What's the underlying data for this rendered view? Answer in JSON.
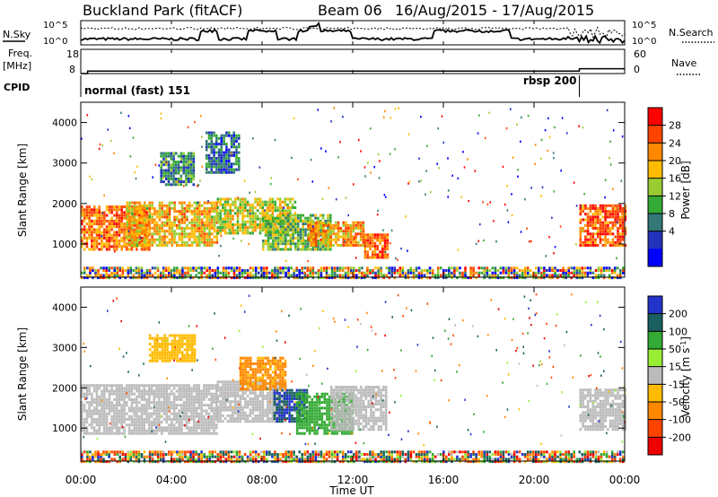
{
  "header": {
    "station": "Buckland Park (fitACF)",
    "beam": "Beam 06",
    "date_range": "16/Aug/2015 - 17/Aug/2015"
  },
  "noise_panel": {
    "left_label": "N.Sky",
    "right_label": "N.Search",
    "left_ticks": [
      "10^5",
      "10^0"
    ],
    "right_ticks": [
      "10^5",
      "10^0"
    ]
  },
  "freq_panel": {
    "left_label_1": "Freq.",
    "left_label_2": "[MHz]",
    "right_label": "Nave",
    "left_ticks": [
      "18",
      "8"
    ],
    "right_ticks": [
      "60",
      "0"
    ]
  },
  "cpid": {
    "label": "CPID",
    "modes": [
      {
        "text": "normal (fast) 151",
        "start_h": 0
      },
      {
        "text": "rbsp 200",
        "start_h": 22
      }
    ]
  },
  "time_axis": {
    "label": "Time UT",
    "ticks": [
      "00:00",
      "04:00",
      "08:00",
      "12:00",
      "16:00",
      "20:00",
      "00:00"
    ]
  },
  "power_colorbar": {
    "label": "Power [dB]",
    "ticks": [
      "28",
      "24",
      "20",
      "16",
      "12",
      "8",
      "4"
    ],
    "colors": [
      "#ff0000",
      "#ff4400",
      "#ff8800",
      "#ffbb00",
      "#99cc33",
      "#33aa33",
      "#337777",
      "#2233bb",
      "#0000ff"
    ]
  },
  "velocity_colorbar": {
    "label": "Velocity [m s",
    "label_sup": "-1",
    "label_close": "]",
    "ticks": [
      "200",
      "100",
      "50",
      "15",
      "-15",
      "-50",
      "-100",
      "-200"
    ],
    "colors": [
      "#2233cc",
      "#1a6060",
      "#33aa33",
      "#99ee33",
      "#bbbbbb",
      "#ffbb00",
      "#ff8800",
      "#ff4400",
      "#ee0000"
    ]
  },
  "chart_data": [
    {
      "type": "line",
      "name": "noise",
      "x_range_h": [
        0,
        24
      ],
      "y_scale": "log",
      "ylim": [
        1,
        100000
      ],
      "series": [
        {
          "name": "N.Sky",
          "style": "solid"
        },
        {
          "name": "N.Search",
          "style": "dotted"
        }
      ]
    },
    {
      "type": "line",
      "name": "frequency",
      "x_range_h": [
        0,
        24
      ],
      "ylim": [
        8,
        18
      ],
      "y2lim": [
        0,
        60
      ],
      "series": [
        {
          "name": "Freq",
          "x": [
            0,
            0.3,
            0.3,
            22,
            22,
            24
          ],
          "y": [
            8,
            8,
            9,
            9,
            10,
            10
          ]
        }
      ]
    },
    {
      "type": "heatmap",
      "name": "power",
      "xlabel": "Time UT",
      "ylabel": "Slant Range [km]",
      "x_range_h": [
        0,
        24
      ],
      "ylim": [
        180,
        4500
      ],
      "y_ticks": [
        1000,
        2000,
        3000,
        4000
      ],
      "clim": [
        0,
        32
      ],
      "regions": [
        {
          "t": [
            0,
            3
          ],
          "r": [
            900,
            2000
          ],
          "v": 24
        },
        {
          "t": [
            2,
            6
          ],
          "r": [
            1000,
            2100
          ],
          "v": 20
        },
        {
          "t": [
            6,
            9.5
          ],
          "r": [
            1300,
            2200
          ],
          "v": 18
        },
        {
          "t": [
            8,
            11
          ],
          "r": [
            900,
            1800
          ],
          "v": 14
        },
        {
          "t": [
            10,
            12.5
          ],
          "r": [
            1000,
            1600
          ],
          "v": 22
        },
        {
          "t": [
            12.5,
            13.5
          ],
          "r": [
            700,
            1300
          ],
          "v": 26
        },
        {
          "t": [
            22,
            24
          ],
          "r": [
            1000,
            2000
          ],
          "v": 26
        },
        {
          "t": [
            3.5,
            5
          ],
          "r": [
            2500,
            3300
          ],
          "v": 10
        },
        {
          "t": [
            5.5,
            7
          ],
          "r": [
            2800,
            3800
          ],
          "v": 8
        }
      ]
    },
    {
      "type": "heatmap",
      "name": "velocity",
      "xlabel": "Time UT",
      "ylabel": "Slant Range [km]",
      "x_range_h": [
        0,
        24
      ],
      "ylim": [
        180,
        4500
      ],
      "y_ticks": [
        1000,
        2000,
        3000,
        4000
      ],
      "clim": [
        -250,
        250
      ],
      "regions": [
        {
          "t": [
            0,
            6
          ],
          "r": [
            900,
            2100
          ],
          "v": 0
        },
        {
          "t": [
            6,
            9
          ],
          "r": [
            1200,
            2200
          ],
          "v": 0
        },
        {
          "t": [
            8.5,
            10
          ],
          "r": [
            1200,
            2000
          ],
          "v": 200
        },
        {
          "t": [
            9.5,
            12
          ],
          "r": [
            900,
            1900
          ],
          "v": 70
        },
        {
          "t": [
            11,
            13.5
          ],
          "r": [
            1000,
            2100
          ],
          "v": 0
        },
        {
          "t": [
            22,
            24
          ],
          "r": [
            1000,
            2000
          ],
          "v": 0
        },
        {
          "t": [
            3,
            5
          ],
          "r": [
            2700,
            3400
          ],
          "v": -30
        },
        {
          "t": [
            7,
            9
          ],
          "r": [
            2000,
            2800
          ],
          "v": -60
        }
      ]
    }
  ]
}
